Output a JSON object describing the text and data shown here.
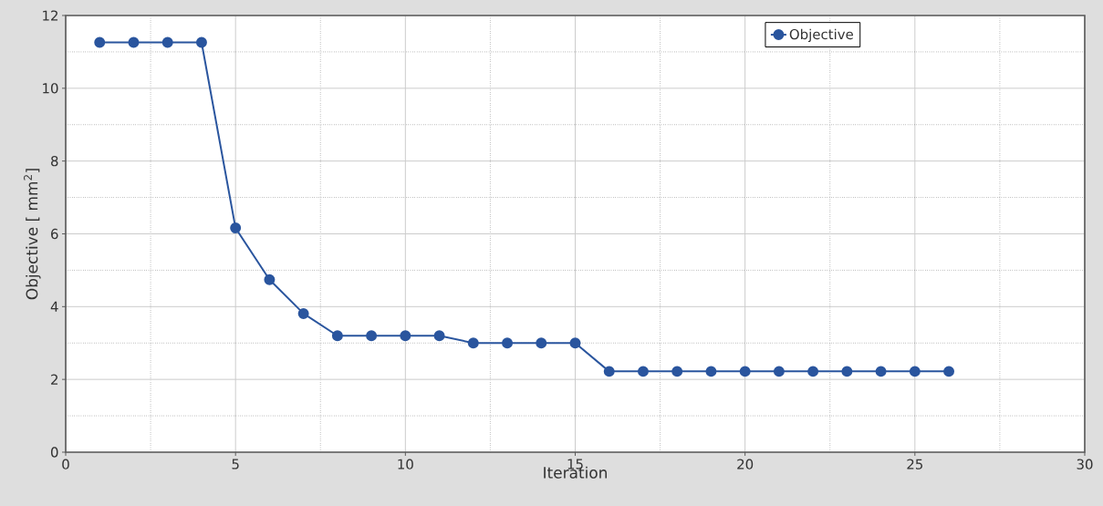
{
  "chart_data": {
    "type": "line",
    "xlabel": "Iteration",
    "ylabel": "Objective [ mm$^{2}$]",
    "x": [
      1,
      2,
      3,
      4,
      5,
      6,
      7,
      8,
      9,
      10,
      11,
      12,
      13,
      14,
      15,
      16,
      17,
      18,
      19,
      20,
      21,
      22,
      23,
      24,
      25,
      26
    ],
    "series": [
      {
        "name": "Objective",
        "color": "#2a559e",
        "values": [
          11.26,
          11.26,
          11.26,
          11.26,
          6.16,
          4.74,
          3.81,
          3.2,
          3.2,
          3.2,
          3.2,
          3.0,
          3.0,
          3.0,
          3.0,
          2.22,
          2.22,
          2.22,
          2.22,
          2.22,
          2.22,
          2.22,
          2.22,
          2.22,
          2.22,
          2.22
        ]
      }
    ],
    "xlim": [
      0,
      30
    ],
    "ylim": [
      0,
      12
    ],
    "xticks": [
      0,
      5,
      10,
      15,
      20,
      25,
      30
    ],
    "yticks": [
      0,
      2,
      4,
      6,
      8,
      10,
      12
    ],
    "grid": true,
    "legend": "top right",
    "marker": "circle",
    "line_style": "solid"
  }
}
